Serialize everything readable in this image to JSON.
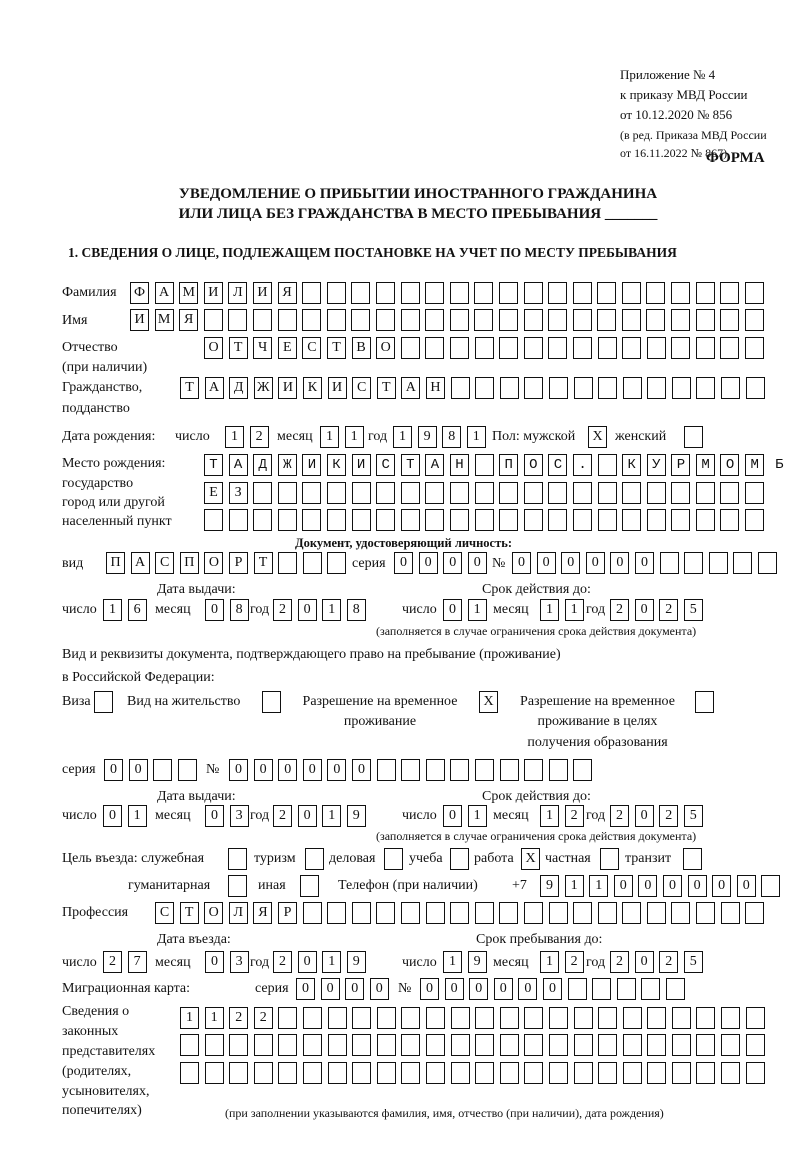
{
  "header": {
    "appendix": "Приложение № 4",
    "order": "к приказу МВД России",
    "order_date": "от 10.12.2020 № 856",
    "edition1": "(в ред. Приказа МВД России",
    "edition2": "от 16.11.2022 № 867)",
    "form_label": "ФОРМА"
  },
  "title": {
    "line1": "УВЕДОМЛЕНИЕ О ПРИБЫТИИ ИНОСТРАННОГО ГРАЖДАНИНА",
    "line2": "ИЛИ ЛИЦА БЕЗ ГРАЖДАНСТВА В МЕСТО ПРЕБЫВАНИЯ _______"
  },
  "section1": {
    "heading": "1. СВЕДЕНИЯ О ЛИЦЕ, ПОДЛЕЖАЩЕМ ПОСТАНОВКЕ НА УЧЕТ ПО МЕСТУ ПРЕБЫВАНИЯ",
    "surname": {
      "label": "Фамилия",
      "value": "ФАМИЛИЯ"
    },
    "name": {
      "label": "Имя",
      "value": "ИМЯ"
    },
    "patronymic": {
      "label": "Отчество",
      "label2": "(при наличии)",
      "value": "ОТЧЕСТВО"
    },
    "citizenship": {
      "label": "Гражданство,",
      "label2": "подданство",
      "value": "ТАДЖИКИСТАН"
    },
    "birth_date": {
      "label": "Дата рождения:",
      "day_label": "число",
      "month_label": "месяц",
      "year_label": "год",
      "day": "12",
      "month": "11",
      "year": "1981"
    },
    "sex": {
      "label_male": "Пол: мужской",
      "male": "X",
      "label_female": "женский",
      "female": ""
    },
    "birth_place": {
      "label1": "Место рождения:",
      "label2": "государство",
      "label3": "город или другой",
      "label4": "населенный пункт",
      "line1": "ТАДЖИКИСТАН ПОС. КУРМОМБ",
      "line2": "ЕЗ",
      "line3": ""
    },
    "id_document": {
      "heading": "Документ, удостоверяющий личность:",
      "kind_label": "вид",
      "kind": "ПАСПОРТ",
      "series_label": "серия",
      "series": "0000",
      "number_label": "№",
      "number": "000000",
      "issue_label": "Дата выдачи:",
      "valid_label": "Срок действия до:",
      "day_label": "число",
      "month_label": "месяц",
      "year_label": "год",
      "issue_day": "16",
      "issue_month": "08",
      "issue_year": "2018",
      "valid_day": "01",
      "valid_month": "11",
      "valid_year": "2025",
      "note": "(заполняется в случае ограничения срока действия документа)"
    },
    "stay_document": {
      "intro1": "Вид и реквизиты документа, подтверждающего право на пребывание (проживание)",
      "intro2": "в Российской Федерации:",
      "visa_label": "Виза",
      "visa": "",
      "residence_label": "Вид на жительство",
      "residence": "",
      "temp_label1": "Разрешение на временное",
      "temp_label2": "проживание",
      "temp": "X",
      "edu_label1": "Разрешение на временное",
      "edu_label2": "проживание в целях",
      "edu_label3": "получения образования",
      "edu": "",
      "series_label": "серия",
      "series": "00",
      "number_label": "№",
      "number": "000000",
      "issue_label": "Дата выдачи:",
      "valid_label": "Срок действия до:",
      "day_label": "число",
      "month_label": "месяц",
      "year_label": "год",
      "issue_day": "01",
      "issue_month": "03",
      "issue_year": "2019",
      "valid_day": "01",
      "valid_month": "12",
      "valid_year": "2025",
      "note": "(заполняется в случае ограничения срока действия документа)"
    },
    "purpose": {
      "label": "Цель въезда: служебная",
      "official": "",
      "tourism_label": "туризм",
      "tourism": "",
      "business_label": "деловая",
      "business": "",
      "study_label": "учеба",
      "study": "",
      "work_label": "работа",
      "work": "X",
      "private_label": "частная",
      "private": "",
      "transit_label": "транзит",
      "transit": "",
      "humanitarian_label": "гуманитарная",
      "humanitarian": "",
      "other_label": "иная",
      "other": ""
    },
    "phone": {
      "label": "Телефон (при наличии)",
      "prefix": "+7",
      "value": "911000000"
    },
    "profession": {
      "label": "Профессия",
      "value": "СТОЛЯР"
    },
    "entry": {
      "entry_label": "Дата въезда:",
      "stay_label": "Срок пребывания до:",
      "day_label": "число",
      "month_label": "месяц",
      "year_label": "год",
      "entry_day": "27",
      "entry_month": "03",
      "entry_year": "2019",
      "stay_day": "19",
      "stay_month": "12",
      "stay_year": "2025"
    },
    "migration_card": {
      "label": "Миграционная карта:",
      "series_label": "серия",
      "series": "0000",
      "number_label": "№",
      "number": "000000"
    },
    "representatives": {
      "label1": "Сведения о",
      "label2": "законных",
      "label3": "представителях",
      "label4": "(родителях,",
      "label5": "усыновителях,",
      "label6": "попечителях)",
      "line1": "1122",
      "line2": "",
      "line3": "",
      "note": "(при заполнении указываются фамилия, имя, отчество (при наличии), дата рождения)"
    }
  }
}
